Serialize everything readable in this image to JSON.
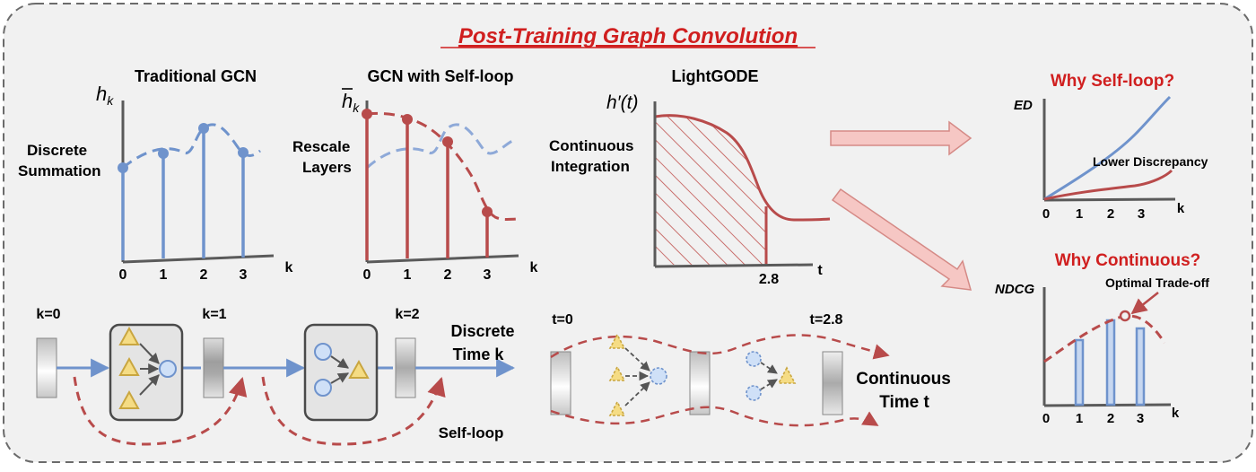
{
  "title": "Post-Training Graph Convolution",
  "colors": {
    "blue": "#6f93cc",
    "red": "#b84b4b",
    "title_red": "#d01f1f",
    "panel_bg": "#f1f1f1",
    "pink_fill": "#f6c7c4",
    "tri_fill": "#f5dc84",
    "circle_fill": "#cfe0f7"
  },
  "panels": {
    "traditional": {
      "heading": "Traditional GCN",
      "y_symbol": "h_k",
      "side_label_lines": [
        "Discrete",
        "Summation"
      ],
      "x_ticks": [
        "0",
        "1",
        "2",
        "3"
      ],
      "x_axis_label": "k"
    },
    "selfloop": {
      "heading": "GCN with Self-loop",
      "y_symbol": "h̄_k",
      "side_label_lines": [
        "Rescale",
        "Layers"
      ],
      "x_ticks": [
        "0",
        "1",
        "2",
        "3"
      ],
      "x_axis_label": "k"
    },
    "lightgode": {
      "heading": "LightGODE",
      "y_symbol": "h′(t)",
      "side_label_lines": [
        "Continuous",
        "Integration"
      ],
      "x_tick": "2.8",
      "x_axis_label": "t"
    }
  },
  "why_selfloop": {
    "heading": "Why Self-loop?",
    "y_label": "ED",
    "annotation": "Lower Discrepancy",
    "x_ticks": [
      "0",
      "1",
      "2",
      "3"
    ],
    "x_axis_label": "k"
  },
  "why_continuous": {
    "heading": "Why Continuous?",
    "y_label": "NDCG",
    "annotation": "Optimal Trade-off",
    "x_ticks": [
      "0",
      "1",
      "2",
      "3"
    ],
    "x_axis_label": "k"
  },
  "bottom_discrete": {
    "k_labels": [
      "k=0",
      "k=1",
      "k=2"
    ],
    "end_label_lines": [
      "Discrete",
      "Time k"
    ],
    "selfloop_label": "Self-loop"
  },
  "bottom_continuous": {
    "t_labels": [
      "t=0",
      "t=2.8"
    ],
    "end_label_lines": [
      "Continuous",
      "Time t"
    ]
  }
}
